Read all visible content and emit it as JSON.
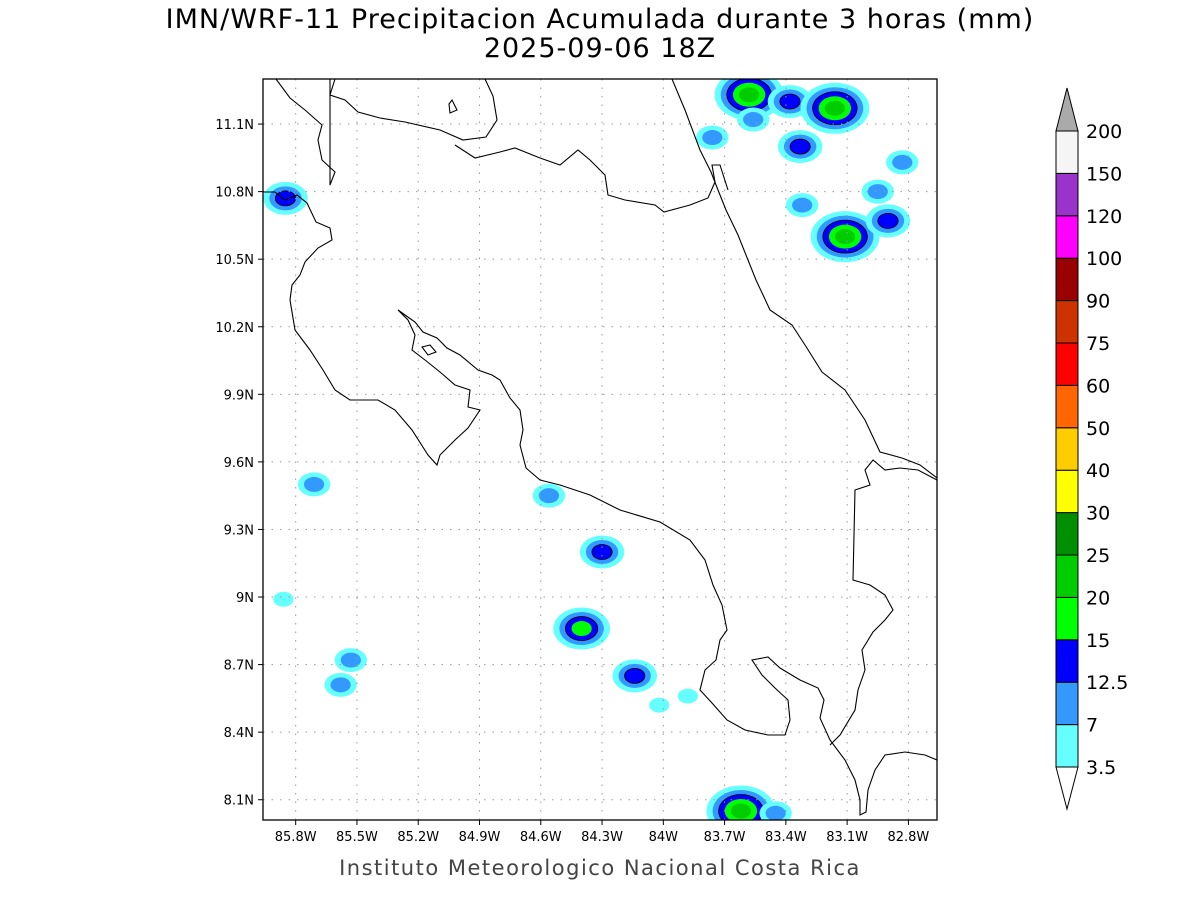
{
  "title": {
    "line1": "IMN/WRF-11 Precipitacion Acumulada durante 3 horas (mm)",
    "line2": "2025-09-06 18Z"
  },
  "footer": "Instituto Meteorologico Nacional Costa Rica",
  "map": {
    "lon_range": [
      -85.96,
      -82.66
    ],
    "lat_range": [
      8.01,
      11.3
    ],
    "lat_ticks": [
      "11.1N",
      "10.8N",
      "10.5N",
      "10.2N",
      "9.9N",
      "9.6N",
      "9.3N",
      "9N",
      "8.7N",
      "8.4N",
      "8.1N"
    ],
    "lat_values": [
      11.1,
      10.8,
      10.5,
      10.2,
      9.9,
      9.6,
      9.3,
      9.0,
      8.7,
      8.4,
      8.1
    ],
    "lon_ticks": [
      "85.8W",
      "85.5W",
      "85.2W",
      "84.9W",
      "84.6W",
      "84.3W",
      "84W",
      "83.7W",
      "83.4W",
      "83.1W",
      "82.8W"
    ],
    "lon_values": [
      -85.8,
      -85.5,
      -85.2,
      -84.9,
      -84.6,
      -84.3,
      -84.0,
      -83.7,
      -83.4,
      -83.1,
      -82.8
    ]
  },
  "colorbar": {
    "labels": [
      "3.5",
      "7",
      "12.5",
      "15",
      "20",
      "25",
      "30",
      "40",
      "50",
      "60",
      "75",
      "90",
      "100",
      "120",
      "150",
      "200"
    ],
    "colors": [
      "#66ffff",
      "#3399ff",
      "#0000ff",
      "#00ff00",
      "#00cc00",
      "#008f00",
      "#ffff00",
      "#ffcc00",
      "#ff6600",
      "#ff0000",
      "#cc3300",
      "#990000",
      "#ff00ff",
      "#9933cc",
      "#f5f5f5"
    ],
    "under_color": "#ffffff",
    "over_color": "#aaaaaa"
  },
  "precip_cells": [
    {
      "lon": -83.58,
      "lat": 11.23,
      "level": 4
    },
    {
      "lon": -83.38,
      "lat": 11.2,
      "level": 2
    },
    {
      "lon": -83.16,
      "lat": 11.17,
      "level": 4
    },
    {
      "lon": -83.56,
      "lat": 11.12,
      "level": 1
    },
    {
      "lon": -83.33,
      "lat": 11.0,
      "level": 2
    },
    {
      "lon": -83.76,
      "lat": 11.04,
      "level": 1
    },
    {
      "lon": -83.11,
      "lat": 10.6,
      "level": 4
    },
    {
      "lon": -82.9,
      "lat": 10.67,
      "level": 2
    },
    {
      "lon": -82.95,
      "lat": 10.8,
      "level": 1
    },
    {
      "lon": -82.83,
      "lat": 10.93,
      "level": 1
    },
    {
      "lon": -83.32,
      "lat": 10.74,
      "level": 1
    },
    {
      "lon": -85.85,
      "lat": 10.77,
      "level": 2
    },
    {
      "lon": -85.71,
      "lat": 9.5,
      "level": 1
    },
    {
      "lon": -84.56,
      "lat": 9.45,
      "level": 1
    },
    {
      "lon": -84.3,
      "lat": 9.2,
      "level": 2
    },
    {
      "lon": -84.4,
      "lat": 8.86,
      "level": 3
    },
    {
      "lon": -84.14,
      "lat": 8.65,
      "level": 2
    },
    {
      "lon": -85.58,
      "lat": 8.61,
      "level": 1
    },
    {
      "lon": -85.53,
      "lat": 8.72,
      "level": 1
    },
    {
      "lon": -83.62,
      "lat": 8.05,
      "level": 4
    },
    {
      "lon": -83.45,
      "lat": 8.04,
      "level": 1
    },
    {
      "lon": -84.02,
      "lat": 8.52,
      "level": 0
    },
    {
      "lon": -83.88,
      "lat": 8.56,
      "level": 0
    },
    {
      "lon": -85.86,
      "lat": 8.99,
      "level": 0
    }
  ]
}
